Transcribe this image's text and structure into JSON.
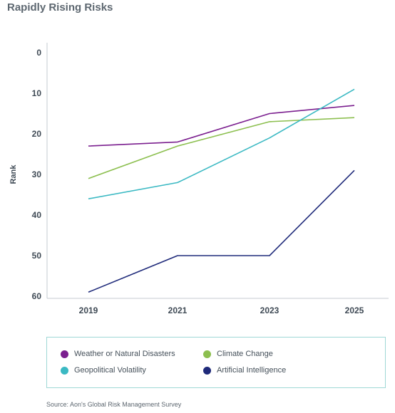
{
  "title": "Rapidly Rising Risks",
  "source": "Source: Aon's Global Risk Management Survey",
  "chart_data": {
    "type": "line",
    "ylabel": "Rank",
    "xlabel": "",
    "y_inverted": true,
    "ylim": [
      0,
      60
    ],
    "yticks": [
      0,
      10,
      20,
      30,
      40,
      50,
      60
    ],
    "categories": [
      "2019",
      "2021",
      "2023",
      "2025"
    ],
    "grid": false,
    "legend_placement": "bottom",
    "series": [
      {
        "name": "Weather or Natural Disasters",
        "color": "#7b1f8f",
        "values": [
          23,
          22,
          15,
          13
        ]
      },
      {
        "name": "Climate Change",
        "color": "#8cbf4f",
        "values": [
          31,
          23,
          17,
          16
        ]
      },
      {
        "name": "Geopolitical Volatility",
        "color": "#3bb9c3",
        "values": [
          36,
          32,
          21,
          9
        ]
      },
      {
        "name": "Artificial Intelligence",
        "color": "#1f2a7a",
        "values": [
          59,
          50,
          50,
          29
        ]
      }
    ]
  }
}
